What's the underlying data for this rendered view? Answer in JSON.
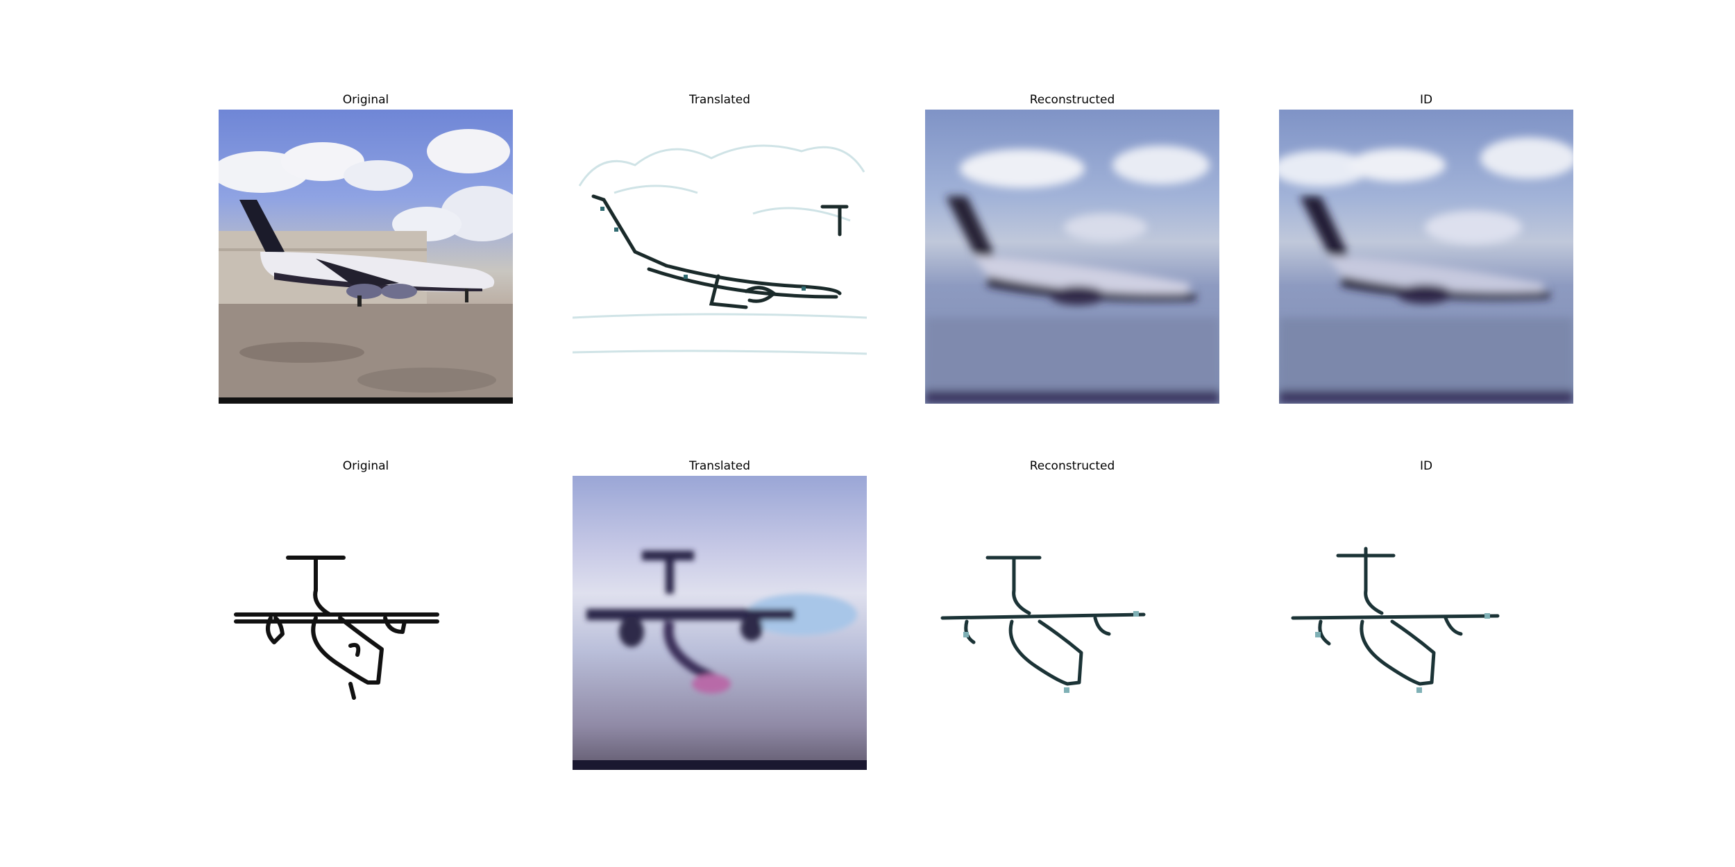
{
  "rows": [
    {
      "name": "photo-to-sketch",
      "panels": [
        {
          "title": "Original",
          "image": "airliner-photo"
        },
        {
          "title": "Translated",
          "image": "airliner-sketch"
        },
        {
          "title": "Reconstructed",
          "image": "airliner-reconstructed"
        },
        {
          "title": "ID",
          "image": "airliner-identity"
        }
      ]
    },
    {
      "name": "sketch-to-photo",
      "panels": [
        {
          "title": "Original",
          "image": "propeller-sketch"
        },
        {
          "title": "Translated",
          "image": "propeller-photo"
        },
        {
          "title": "Reconstructed",
          "image": "propeller-reconstructed"
        },
        {
          "title": "ID",
          "image": "propeller-identity"
        }
      ]
    }
  ]
}
